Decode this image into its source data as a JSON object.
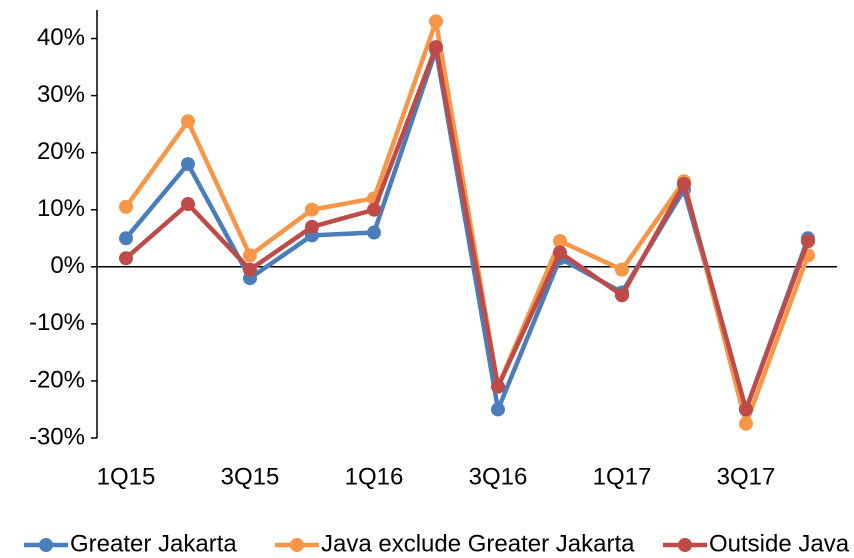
{
  "chart_data": {
    "type": "line",
    "categories": [
      "1Q15",
      null,
      "3Q15",
      null,
      "1Q16",
      null,
      "3Q16",
      null,
      "1Q17",
      null,
      "3Q17",
      null
    ],
    "series": [
      {
        "name": "Greater Jakarta",
        "color": "#4a7ebb",
        "values": [
          5,
          18,
          -2,
          5.5,
          6,
          38,
          -25,
          1.5,
          -4.5,
          13.5,
          -25,
          5
        ]
      },
      {
        "name": "Java exclude Greater Jakarta",
        "color": "#f79646",
        "values": [
          10.5,
          25.5,
          2,
          10,
          12,
          43,
          -21,
          4.5,
          -0.5,
          15,
          -27.5,
          2
        ]
      },
      {
        "name": "Outside Java",
        "color": "#be4b48",
        "values": [
          1.5,
          11,
          -0.5,
          7,
          10,
          38.5,
          -21,
          2.5,
          -5,
          14.5,
          -25,
          4.5
        ]
      }
    ],
    "ylim": [
      -30,
      45
    ],
    "yticks": [
      {
        "value": -30,
        "label": "-30%"
      },
      {
        "value": -20,
        "label": "-20%"
      },
      {
        "value": -10,
        "label": "-10%"
      },
      {
        "value": 0,
        "label": "0%"
      },
      {
        "value": 10,
        "label": "10%"
      },
      {
        "value": 20,
        "label": "20%"
      },
      {
        "value": 30,
        "label": "30%"
      },
      {
        "value": 40,
        "label": "40%"
      }
    ],
    "grid": false,
    "legend": "bottom"
  }
}
